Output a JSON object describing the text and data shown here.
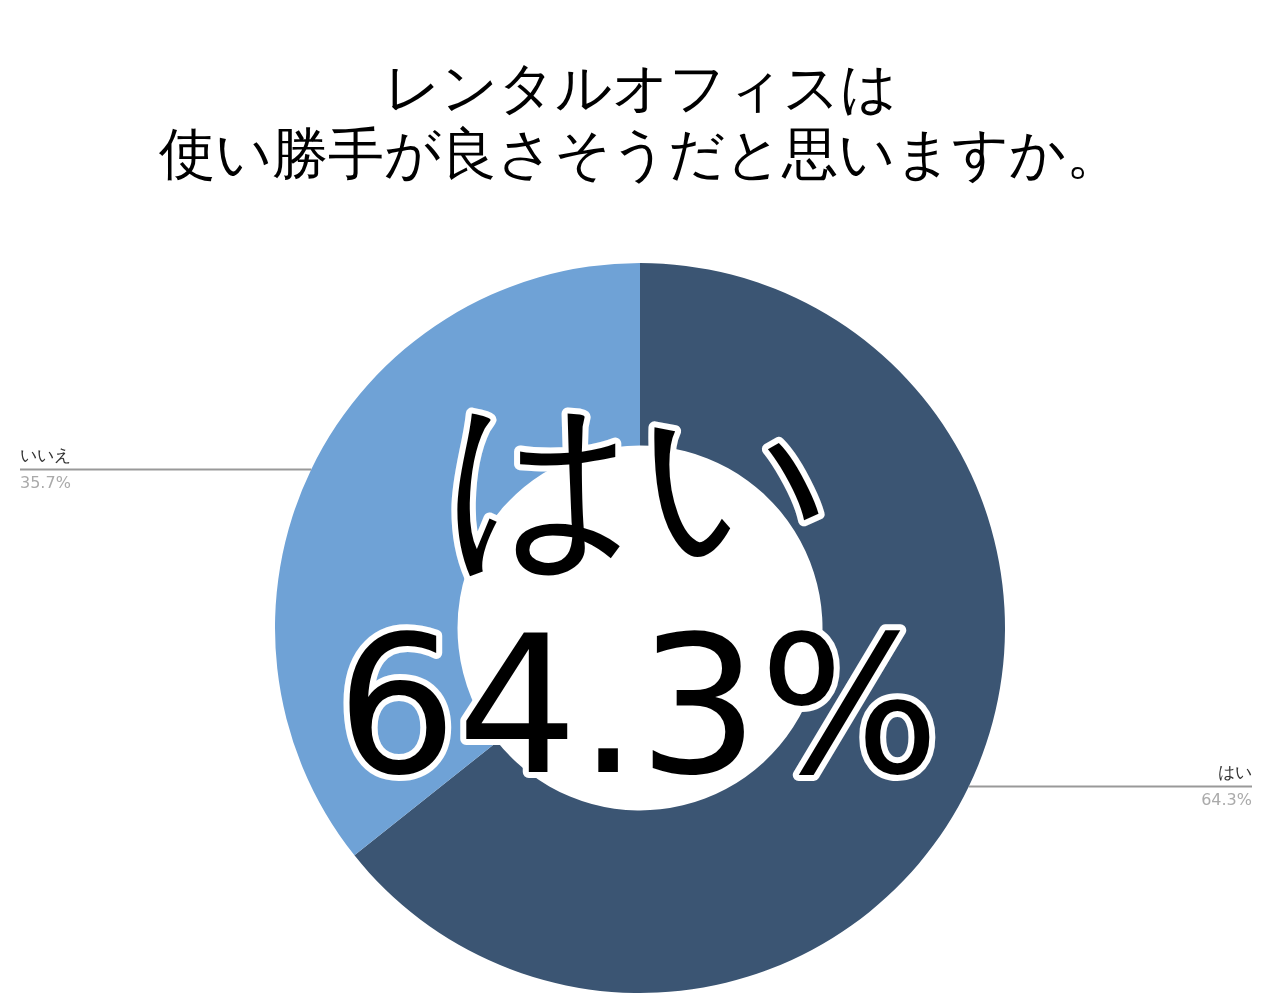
{
  "chart_data": {
    "type": "donut",
    "title": "レンタルオフィスは",
    "subtitle": "使い勝手が良さそうだと思いますか。",
    "categories": [
      "はい",
      "いいえ"
    ],
    "values": [
      64.3,
      35.7
    ],
    "colors": [
      "#3b5573",
      "#6fa2d6"
    ],
    "value_labels": [
      "64.3%",
      "35.7%"
    ],
    "annotations": [
      "はい",
      "64.3%"
    ],
    "legend": false
  }
}
